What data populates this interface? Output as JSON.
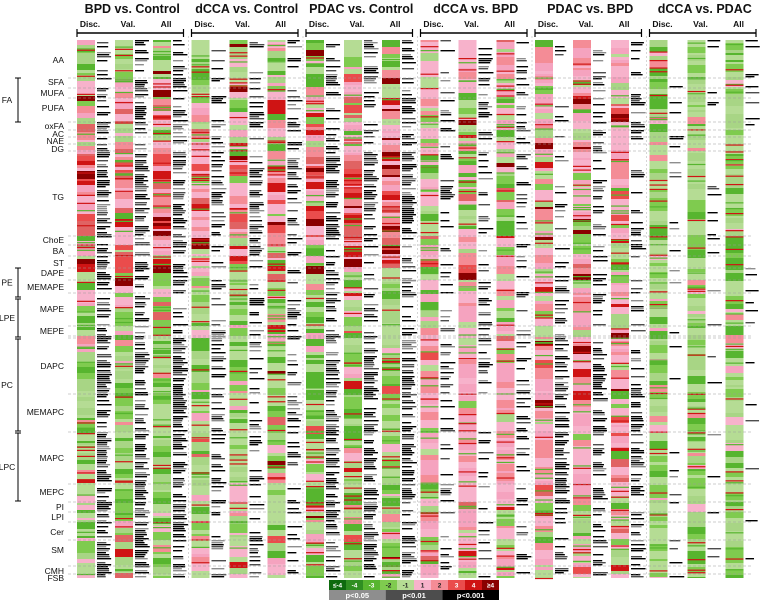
{
  "chart_data": {
    "type": "heatmap",
    "comparisons": [
      {
        "title": "BPD vs. Control",
        "columns": [
          "Disc.",
          "Val.",
          "All"
        ],
        "profile": "up_strong"
      },
      {
        "title": "dCCA vs. Control",
        "columns": [
          "Disc.",
          "Val.",
          "All"
        ],
        "profile": "up_mod"
      },
      {
        "title": "PDAC vs. Control",
        "columns": [
          "Disc.",
          "Val.",
          "All"
        ],
        "profile": "up_strong"
      },
      {
        "title": "dCCA vs. BPD",
        "columns": [
          "Disc.",
          "Val.",
          "All"
        ],
        "profile": "mixed"
      },
      {
        "title": "PDAC vs. BPD",
        "columns": [
          "Disc.",
          "Val.",
          "All"
        ],
        "profile": "mixed_up"
      },
      {
        "title": "dCCA vs. PDAC",
        "columns": [
          "Disc.",
          "Val.",
          "All"
        ],
        "profile": "down"
      }
    ],
    "lipid_classes": [
      "AA",
      "SFA",
      "MUFA",
      "PUFA",
      "oxFA",
      "AC",
      "NAE",
      "DG",
      "TG",
      "ChoE",
      "BA",
      "ST",
      "DAPE",
      "MEMAPE",
      "MAPE",
      "MEPE",
      "DAPC",
      "MEMAPC",
      "MAPC",
      "MEPC",
      "PI",
      "LPI",
      "Cer",
      "SM",
      "CMH",
      "FSB"
    ],
    "class_groups": [
      "FA",
      "PE",
      "LPE",
      "PC",
      "LPC"
    ],
    "color_scale": {
      "labels": [
        "≤-4",
        "-4",
        "-3",
        "-2",
        "-1",
        "1",
        "2",
        "3",
        "4",
        "≥4"
      ],
      "colors": [
        "#0e6a0e",
        "#2f8f22",
        "#57b52f",
        "#7fcb4f",
        "#b5dc94",
        "#f7b2cb",
        "#f48c96",
        "#ea4c4c",
        "#cf1414",
        "#8a0000"
      ]
    },
    "pvalue_legend": [
      {
        "label": "p<0.05",
        "color": "#8e8e8e"
      },
      {
        "label": "p<0.01",
        "color": "#4d4d4d"
      },
      {
        "label": "p<0.001",
        "color": "#000000"
      }
    ]
  }
}
